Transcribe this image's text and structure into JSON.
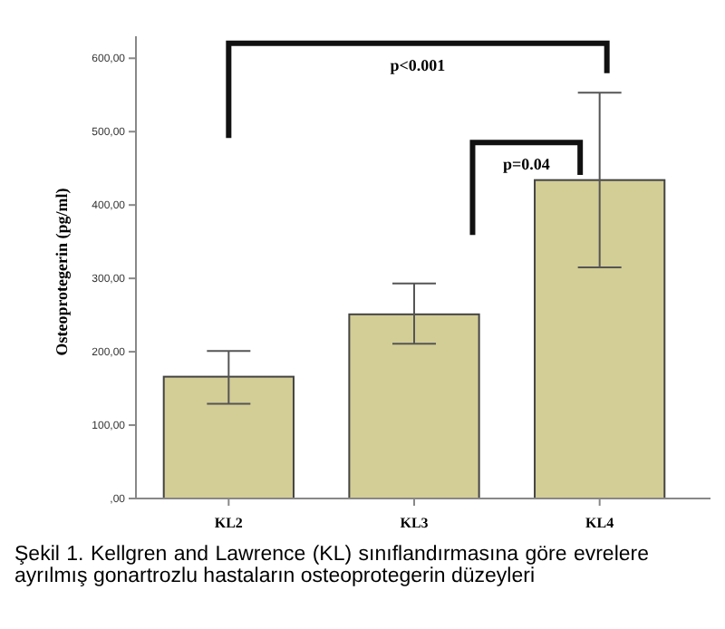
{
  "chart_data": {
    "type": "bar",
    "ylabel": "Osteoprotegerin (pg/ml)",
    "categories": [
      "KL2",
      "KL3",
      "KL4"
    ],
    "values": [
      166,
      251,
      434
    ],
    "color": "#d3cd96",
    "errors": [
      [
        129,
        201
      ],
      [
        211,
        293
      ],
      [
        315,
        553
      ]
    ],
    "ylim": [
      0,
      630
    ],
    "yticks": [
      {
        "value": 0,
        "label": ",00"
      },
      {
        "value": 100,
        "label": "100,00"
      },
      {
        "value": 200,
        "label": "200,00"
      },
      {
        "value": 300,
        "label": "300,00"
      },
      {
        "value": 400,
        "label": "400,00"
      },
      {
        "value": 500,
        "label": "500,00"
      },
      {
        "value": 600,
        "label": "600,00"
      }
    ],
    "grid": false,
    "annotations": [
      "p<0.001",
      "p=0.04",
      "Şekil 1. Kellgren and Lawrence (KL)  sınıflandırmasına göre evrelere ayrılmış gonartrozlu hastaların osteoprotegerin düzeyleri"
    ]
  }
}
